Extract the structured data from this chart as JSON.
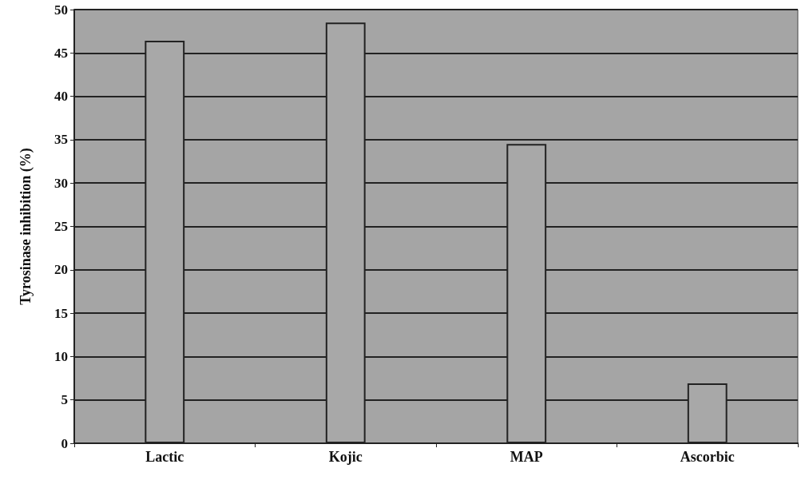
{
  "chart_data": {
    "type": "bar",
    "ylabel": "Tyrosinase inhibition (%)",
    "categories": [
      "Lactic",
      "Kojic",
      "MAP",
      "Ascorbic"
    ],
    "values": [
      46.4,
      48.5,
      34.5,
      6.9
    ],
    "color": "#a8a8a8",
    "ylim": [
      0,
      50
    ],
    "yticks": [
      0,
      5,
      10,
      15,
      20,
      25,
      30,
      35,
      40,
      45,
      50
    ],
    "grid": "y"
  }
}
